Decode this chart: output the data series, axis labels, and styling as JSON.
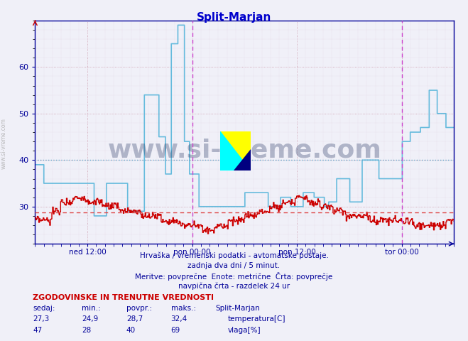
{
  "title": "Split-Marjan",
  "bg_color": "#f0f0f8",
  "plot_bg_color": "#f0f0f8",
  "grid_major_color": "#cc99aa",
  "grid_minor_color": "#ddccdd",
  "text_color": "#000080",
  "axis_color": "#000099",
  "title_color": "#0000cc",
  "ylim": [
    22,
    70
  ],
  "yticks": [
    30,
    40,
    50,
    60
  ],
  "temp_color": "#cc0000",
  "temp_avg": 28.7,
  "hum_color": "#66bbdd",
  "hum_avg": 40.0,
  "vline_color": "#cc44cc",
  "avg_line_color_temp": "#dd4444",
  "avg_line_color_hum": "#66aacc",
  "x_labels": [
    "ned 12:00",
    "pon 00:00",
    "pon 12:00",
    "tor 00:00"
  ],
  "footer_lines": [
    "Hrvaška / vremenski podatki - avtomatske postaje.",
    "zadnja dva dni / 5 minut.",
    "Meritve: povprečne  Enote: metrične  Črta: povprečje",
    "navpična črta - razdelek 24 ur"
  ],
  "table_header": "ZGODOVINSKE IN TRENUTNE VREDNOSTI",
  "table_cols": [
    "sedaj:",
    "min.:",
    "povpr.:",
    "maks.:",
    "Split-Marjan"
  ],
  "table_row1": [
    "27,3",
    "24,9",
    "28,7",
    "32,4",
    "temperatura[C]"
  ],
  "table_row2": [
    "47",
    "28",
    "40",
    "69",
    "vlaga[%]"
  ],
  "watermark": "www.si-vreme.com",
  "watermark_color": "#1a2a5a",
  "logo_yellow": "#ffff00",
  "logo_cyan": "#00ffff",
  "logo_darkblue": "#000080"
}
